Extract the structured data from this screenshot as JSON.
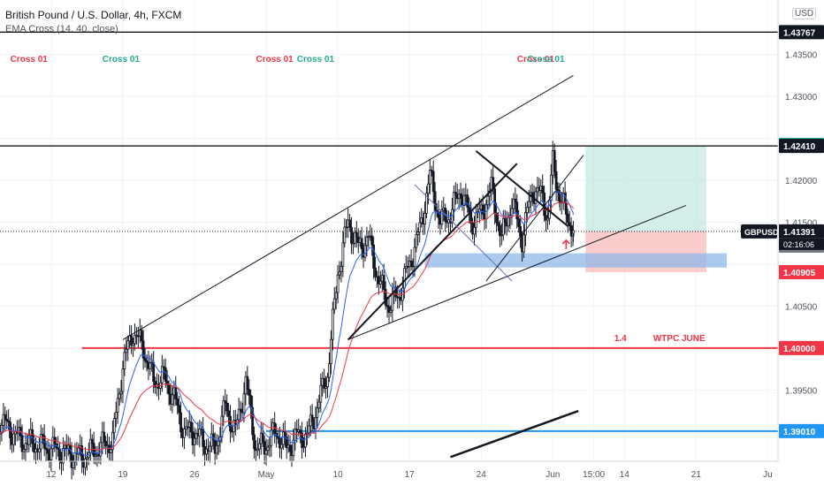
{
  "header": {
    "title": "British Pound / U.S. Dollar, 4h, FXCM",
    "indicator": "EMA Cross (14, 40, close)",
    "currency": "USD"
  },
  "colors": {
    "up": "#131722",
    "down": "#131722",
    "ema_fast": "#2962ff",
    "ema_slow": "#f23645",
    "support_red": "#f23645",
    "support_blue": "#2196f3",
    "profit_zone": "#b7e3da",
    "loss_zone": "#f9b6b6",
    "demand_zone": "#90b7e8",
    "cross_red": "#f23645",
    "cross_green": "#22ab94"
  },
  "chart_data": {
    "type": "candlestick",
    "symbol": "GBPUSD",
    "timeframe": "4h",
    "ylim": [
      1.3865,
      1.4415
    ],
    "y_ticks": [
      "1.43500",
      "1.43000",
      "1.42000",
      "1.41500",
      "1.40500",
      "1.39500"
    ],
    "x_ticks": [
      "12",
      "19",
      "26",
      "May",
      "10",
      "17",
      "24",
      "Jun",
      "15:00",
      "14",
      "21",
      "Ju"
    ],
    "x_tick_positions": [
      0,
      7,
      14,
      21,
      28,
      35,
      42,
      49,
      53,
      56,
      63,
      70
    ],
    "x_range": [
      -5,
      71
    ],
    "anchors": [
      [
        -5,
        1.3915
      ],
      [
        -3,
        1.389
      ],
      [
        0,
        1.388
      ],
      [
        3,
        1.387
      ],
      [
        6,
        1.389
      ],
      [
        7,
        1.398
      ],
      [
        8,
        1.402
      ],
      [
        9,
        1.4
      ],
      [
        10,
        1.396
      ],
      [
        11,
        1.3965
      ],
      [
        12,
        1.394
      ],
      [
        13,
        1.39
      ],
      [
        14,
        1.39
      ],
      [
        15,
        1.3885
      ],
      [
        16,
        1.388
      ],
      [
        17,
        1.393
      ],
      [
        18,
        1.39
      ],
      [
        19,
        1.396
      ],
      [
        20,
        1.388
      ],
      [
        21,
        1.3885
      ],
      [
        22,
        1.39
      ],
      [
        23,
        1.388
      ],
      [
        24,
        1.3895
      ],
      [
        25,
        1.3895
      ],
      [
        26,
        1.393
      ],
      [
        27,
        1.397
      ],
      [
        28,
        1.409
      ],
      [
        29,
        1.415
      ],
      [
        30,
        1.412
      ],
      [
        31,
        1.413
      ],
      [
        32,
        1.408
      ],
      [
        33,
        1.405
      ],
      [
        34,
        1.4065
      ],
      [
        35,
        1.41
      ],
      [
        36,
        1.414
      ],
      [
        37,
        1.4205
      ],
      [
        38,
        1.415
      ],
      [
        39,
        1.416
      ],
      [
        40,
        1.419
      ],
      [
        41,
        1.415
      ],
      [
        42,
        1.416
      ],
      [
        43,
        1.419
      ],
      [
        44,
        1.413
      ],
      [
        45,
        1.4175
      ],
      [
        46,
        1.413
      ],
      [
        47,
        1.419
      ],
      [
        48,
        1.418
      ],
      [
        48.5,
        1.4155
      ],
      [
        49,
        1.422
      ],
      [
        49.7,
        1.418
      ],
      [
        50.3,
        1.416
      ],
      [
        51,
        1.414
      ]
    ],
    "ema_fast_offset": -0.0003,
    "ema_slow_offset": -0.0012,
    "current_price": 1.41391,
    "price_labels": [
      {
        "value": 1.43767,
        "text": "1.43767",
        "style": "dark"
      },
      {
        "value": 1.42422,
        "text": "1.42422",
        "style": "teal"
      },
      {
        "value": 1.4241,
        "text": "1.42410",
        "style": "dark"
      },
      {
        "value": 1.41391,
        "text": "1.41391",
        "style": "dark"
      },
      {
        "value": 1.41389,
        "text": "1.41389",
        "style": "gray"
      },
      {
        "value": 1.40905,
        "text": "1.40905",
        "style": "red"
      },
      {
        "value": 1.4,
        "text": "1.40000",
        "style": "red"
      },
      {
        "value": 1.3901,
        "text": "1.39010",
        "style": "blue"
      }
    ],
    "symbol_tag": "GBPUSD",
    "countdown": "02:16:06",
    "horizontal_lines": [
      {
        "value": 1.43767,
        "color": "#000000"
      },
      {
        "value": 1.4241,
        "color": "#000000"
      },
      {
        "value": 1.4,
        "color": "#f23645",
        "from_x": 3
      },
      {
        "value": 1.3901,
        "color": "#2196f3",
        "from_x": 21
      }
    ],
    "annotations": {
      "wtpc_level": "1.4",
      "wtpc_label": "WTPC JUNE",
      "cross_labels": [
        {
          "text": "Cross 01",
          "x": -4,
          "color": "red"
        },
        {
          "text": "Cross 01",
          "x": 5,
          "color": "green"
        },
        {
          "text": "Cross 01",
          "x": 20,
          "color": "red"
        },
        {
          "text": "Cross 01",
          "x": 24,
          "color": "green"
        },
        {
          "text": "Cross 01",
          "x": 45.5,
          "color": "red"
        },
        {
          "text": "Cross 01",
          "x": 46.5,
          "color": "green"
        }
      ]
    }
  }
}
